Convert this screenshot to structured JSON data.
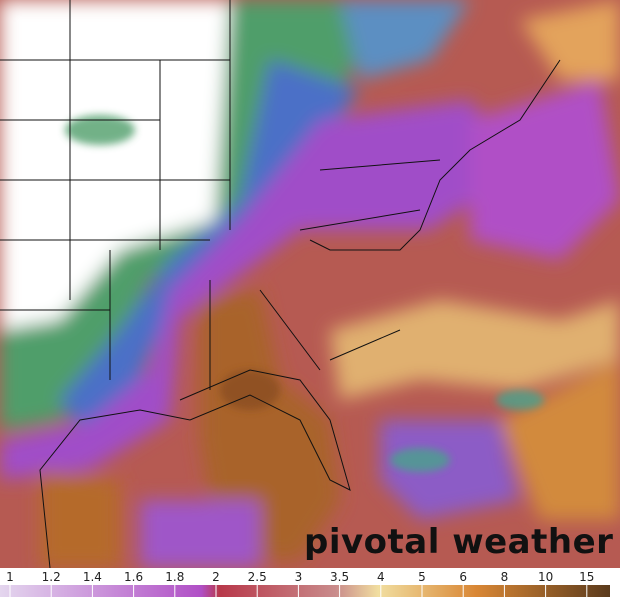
{
  "watermark": "pivotal weather",
  "legend": {
    "labels": [
      "1",
      "1.2",
      "1.4",
      "1.6",
      "1.8",
      "2",
      "2.5",
      "3",
      "3.5",
      "4",
      "5",
      "6",
      "8",
      "10",
      "15"
    ]
  }
}
